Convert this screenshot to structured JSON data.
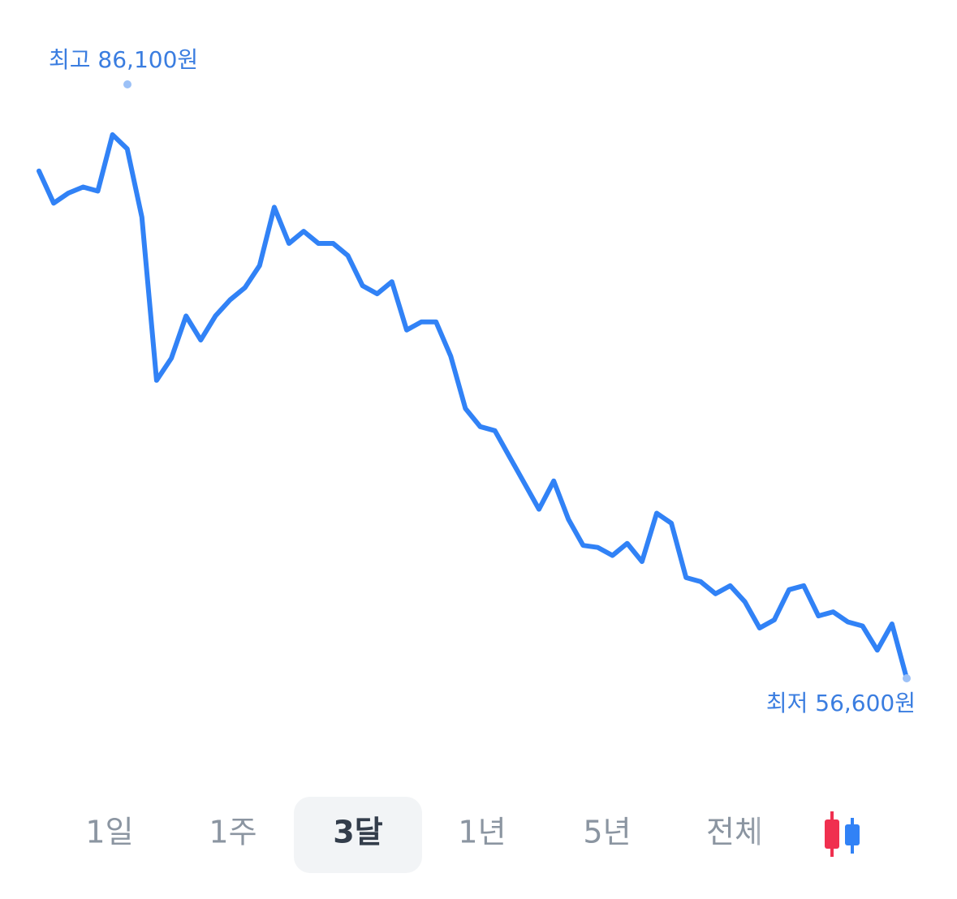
{
  "chart_data": {
    "type": "line",
    "values": [
      81800,
      80200,
      80700,
      81000,
      80800,
      83600,
      82900,
      79500,
      71400,
      72500,
      74600,
      73400,
      74600,
      75400,
      76000,
      77100,
      80000,
      78200,
      78800,
      78200,
      78200,
      77600,
      76100,
      75700,
      76300,
      73900,
      74300,
      74300,
      72600,
      70000,
      69100,
      68900,
      67600,
      66300,
      65000,
      66400,
      64500,
      63200,
      63100,
      62700,
      63300,
      62400,
      64800,
      64300,
      61600,
      61400,
      60800,
      61200,
      60400,
      59100,
      59500,
      61000,
      61200,
      59700,
      59900,
      59400,
      59200,
      58000,
      59300,
      56600
    ],
    "color": "#3182f6",
    "ylim": [
      56600,
      86100
    ],
    "high": {
      "value": 86100,
      "label": "최고 86,100원"
    },
    "low": {
      "value": 56600,
      "label": "최저 56,600원"
    }
  },
  "tabs": {
    "items": [
      "1일",
      "1주",
      "3달",
      "1년",
      "5년",
      "전체"
    ],
    "selected": 2
  }
}
